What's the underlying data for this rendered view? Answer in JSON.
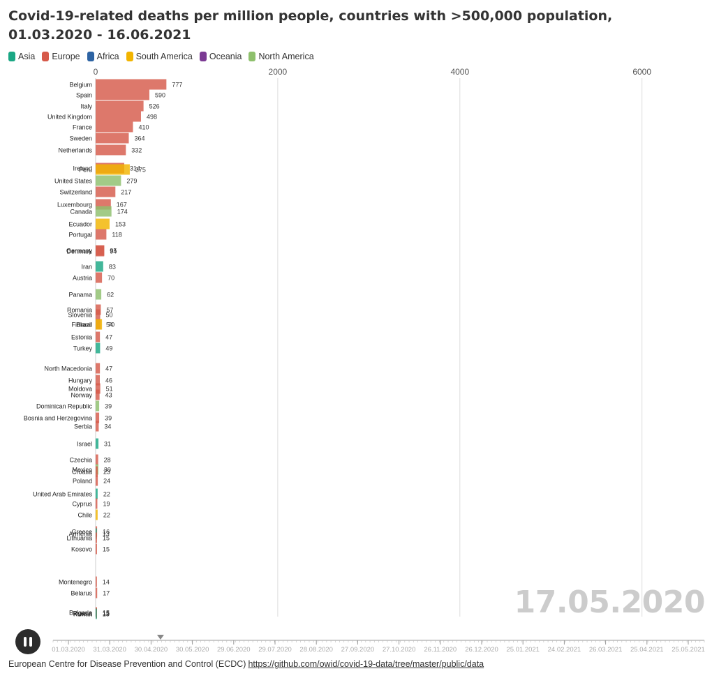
{
  "title": "Covid-19-related deaths per million people, countries with >500,000 population, 01.03.2020 - 16.06.2021",
  "legend": [
    {
      "name": "Asia",
      "color": "#1aa784"
    },
    {
      "name": "Europe",
      "color": "#d65a4a"
    },
    {
      "name": "Africa",
      "color": "#2d63a3"
    },
    {
      "name": "South America",
      "color": "#f2b400"
    },
    {
      "name": "Oceania",
      "color": "#7b3a93"
    },
    {
      "name": "North America",
      "color": "#8ec06c"
    }
  ],
  "current_date": "17.05.2020",
  "source": {
    "text": "European Centre for Disease Prevention and Control (ECDC)",
    "link": "https://github.com/owid/covid-19-data/tree/master/public/data"
  },
  "timeline": {
    "ticks": [
      "01.03.2020",
      "31.03.2020",
      "30.04.2020",
      "30.05.2020",
      "29.06.2020",
      "29.07.2020",
      "28.08.2020",
      "27.09.2020",
      "27.10.2020",
      "26.11.2020",
      "26.12.2020",
      "25.01.2021",
      "24.02.2021",
      "26.03.2021",
      "25.04.2021",
      "25.05.2021"
    ],
    "position_fraction": 0.165
  },
  "chart_data": {
    "type": "bar",
    "orientation": "horizontal",
    "xlim": [
      0,
      6700
    ],
    "x_ticks": [
      0,
      2000,
      4000,
      6000
    ],
    "grid": true,
    "legend_placement": "top-left",
    "bars": [
      {
        "country": "Belgium",
        "value": 777,
        "label": "777",
        "continent": "Europe"
      },
      {
        "country": "Spain",
        "value": 590,
        "label": "590",
        "continent": "Europe"
      },
      {
        "country": "Italy",
        "value": 526,
        "label": "526",
        "continent": "Europe"
      },
      {
        "country": "United Kingdom",
        "value": 498,
        "label": "498",
        "continent": "Europe"
      },
      {
        "country": "France",
        "value": 410,
        "label": "410",
        "continent": "Europe"
      },
      {
        "country": "Sweden",
        "value": 364,
        "label": "364",
        "continent": "Europe"
      },
      {
        "country": "Netherlands",
        "value": 332,
        "label": "332",
        "continent": "Europe"
      },
      {
        "country": "Ireland",
        "value": 314,
        "label": "314",
        "continent": "Europe"
      },
      {
        "country": "Peru",
        "value": 375,
        "label": "375",
        "continent": "South America"
      },
      {
        "country": "United States",
        "value": 279,
        "label": "279",
        "continent": "North America"
      },
      {
        "country": "Switzerland",
        "value": 217,
        "label": "217",
        "continent": "Europe"
      },
      {
        "country": "Luxembourg",
        "value": 167,
        "label": "167",
        "continent": "Europe"
      },
      {
        "country": "Canada",
        "value": 174,
        "label": "174",
        "continent": "North America"
      },
      {
        "country": "Ecuador",
        "value": 153,
        "label": "153",
        "continent": "South America"
      },
      {
        "country": "Portugal",
        "value": 118,
        "label": "118",
        "continent": "Europe"
      },
      {
        "country": "Germany",
        "value": 95,
        "label": "95",
        "continent": "Europe"
      },
      {
        "country": "Denmark",
        "value": 94,
        "label": "94",
        "continent": "Europe"
      },
      {
        "country": "Iran",
        "value": 83,
        "label": "83",
        "continent": "Asia"
      },
      {
        "country": "Austria",
        "value": 70,
        "label": "70",
        "continent": "Europe"
      },
      {
        "country": "Panama",
        "value": 62,
        "label": "62",
        "continent": "North America"
      },
      {
        "country": "Romania",
        "value": 57,
        "label": "57",
        "continent": "Europe"
      },
      {
        "country": "Slovenia",
        "value": 50,
        "label": "50",
        "continent": "Europe"
      },
      {
        "country": "Finland",
        "value": 54,
        "label": "54",
        "continent": "Europe"
      },
      {
        "country": "Brazil",
        "value": 70,
        "label": "70",
        "continent": "South America"
      },
      {
        "country": "Estonia",
        "value": 47,
        "label": "47",
        "continent": "Europe"
      },
      {
        "country": "Turkey",
        "value": 49,
        "label": "49",
        "continent": "Asia"
      },
      {
        "country": "North Macedonia",
        "value": 47,
        "label": "47",
        "continent": "Europe"
      },
      {
        "country": "Hungary",
        "value": 46,
        "label": "46",
        "continent": "Europe"
      },
      {
        "country": "Moldova",
        "value": 51,
        "label": "51",
        "continent": "Europe"
      },
      {
        "country": "Norway",
        "value": 43,
        "label": "43",
        "continent": "Europe"
      },
      {
        "country": "Dominican Republic",
        "value": 39,
        "label": "39",
        "continent": "North America"
      },
      {
        "country": "Bosnia and Herzegovina",
        "value": 39,
        "label": "39",
        "continent": "Europe"
      },
      {
        "country": "Serbia",
        "value": 34,
        "label": "34",
        "continent": "Europe"
      },
      {
        "country": "Israel",
        "value": 31,
        "label": "31",
        "continent": "Asia"
      },
      {
        "country": "Czechia",
        "value": 28,
        "label": "28",
        "continent": "Europe"
      },
      {
        "country": "Mexico",
        "value": 30,
        "label": "30",
        "continent": "North America"
      },
      {
        "country": "Croatia",
        "value": 23,
        "label": "23",
        "continent": "Europe"
      },
      {
        "country": "Poland",
        "value": 24,
        "label": "24",
        "continent": "Europe"
      },
      {
        "country": "United Arab Emirates",
        "value": 22,
        "label": "22",
        "continent": "Asia"
      },
      {
        "country": "Cyprus",
        "value": 19,
        "label": "19",
        "continent": "Europe"
      },
      {
        "country": "Chile",
        "value": 22,
        "label": "22",
        "continent": "South America"
      },
      {
        "country": "Greece",
        "value": 16,
        "label": "16",
        "continent": "Europe"
      },
      {
        "country": "Armenia",
        "value": 13,
        "label": "13",
        "continent": "Asia"
      },
      {
        "country": "Lithuania",
        "value": 15,
        "label": "15",
        "continent": "Europe"
      },
      {
        "country": "Kosovo",
        "value": 15,
        "label": "15",
        "continent": "Europe"
      },
      {
        "country": "Montenegro",
        "value": 14,
        "label": "14",
        "continent": "Europe"
      },
      {
        "country": "Belarus",
        "value": 17,
        "label": "17",
        "continent": "Europe"
      },
      {
        "country": "Bulgaria",
        "value": 15,
        "label": "15",
        "continent": "Europe"
      },
      {
        "country": "Russia",
        "value": 15,
        "label": "15",
        "continent": "Europe"
      },
      {
        "country": "Kuwait",
        "value": 13,
        "label": "13",
        "continent": "Asia"
      }
    ]
  }
}
